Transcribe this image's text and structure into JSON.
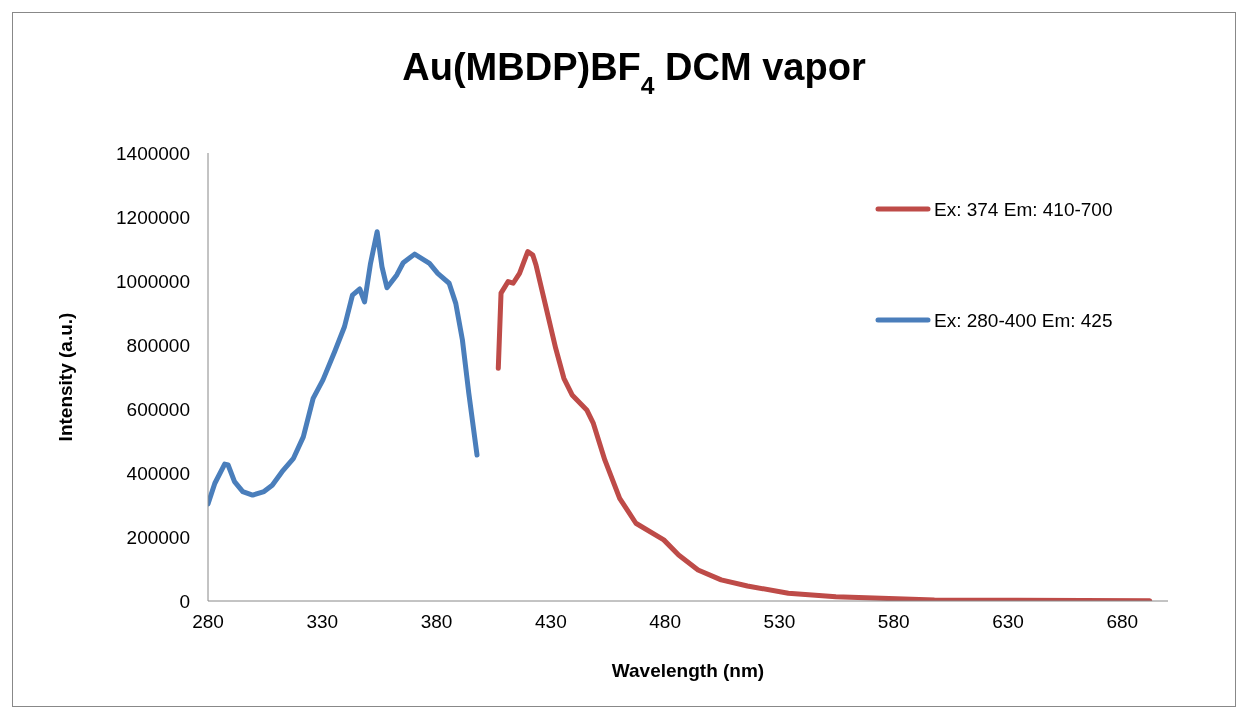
{
  "chart_data": {
    "type": "line",
    "title": "Au(MBDP)BF$_{4}$ DCM vapor",
    "xlabel": "Wavelength (nm)",
    "ylabel": "Intensity (a.u.)",
    "xlim": [
      280,
      700
    ],
    "xticks": [
      280,
      330,
      380,
      430,
      480,
      530,
      580,
      630,
      680
    ],
    "ylim": [
      0,
      1400000
    ],
    "yticks": [
      0,
      200000,
      400000,
      600000,
      800000,
      1000000,
      1200000,
      1400000
    ],
    "grid": false,
    "legend": "top right",
    "marker": "none",
    "line_style": "solid",
    "series": [
      {
        "name": "Ex: 374 Em: 410-700",
        "color": "#be4b48",
        "x": [
          407,
          408.2,
          411.3,
          413.5,
          416.3,
          419.9,
          422.1,
          423.5,
          427.8,
          432.1,
          435.7,
          439.3,
          445.7,
          448.6,
          453.6,
          460.1,
          467.2,
          479.4,
          485.9,
          494.4,
          504.5,
          516,
          533.9,
          554.7,
          597.8,
          692
        ],
        "values": [
          727000,
          962000,
          998000,
          993000,
          1024000,
          1092000,
          1081000,
          1050000,
          920000,
          790000,
          696000,
          644000,
          597000,
          555000,
          441000,
          321000,
          243000,
          191000,
          144000,
          97000,
          66000,
          47000,
          24000,
          13000,
          3000,
          1000
        ]
      },
      {
        "name": "Ex: 280-400 Em: 425",
        "color": "#4a7ebb",
        "x": [
          280,
          283,
          287.3,
          288.8,
          291.6,
          295.2,
          299.5,
          304.5,
          308.1,
          312.4,
          317.4,
          321.7,
          326,
          330.3,
          335.4,
          339.7,
          343.2,
          346.4,
          348.5,
          351.1,
          354,
          356.1,
          358.3,
          362.6,
          365.4,
          370.4,
          376.9,
          380.5,
          385.5,
          388.4,
          391.3,
          394.1,
          397.7
        ],
        "values": [
          303000,
          368000,
          428000,
          425000,
          373000,
          342000,
          331000,
          342000,
          362000,
          404000,
          446000,
          513000,
          633000,
          691000,
          779000,
          857000,
          956000,
          975000,
          935000,
          1055000,
          1154000,
          1045000,
          979000,
          1019000,
          1057000,
          1084000,
          1055000,
          1024000,
          993000,
          930000,
          816000,
          649000,
          456000
        ]
      }
    ]
  }
}
